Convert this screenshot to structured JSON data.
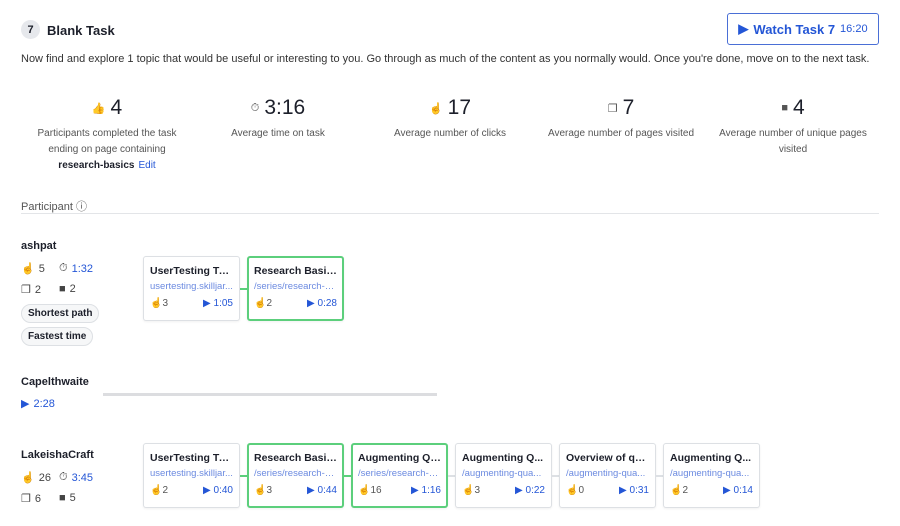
{
  "task": {
    "number": "7",
    "title": "Blank Task",
    "watch_label": "Watch Task 7",
    "watch_time": "16:20",
    "description": "Now find and explore 1 topic that would be useful or interesting to you. Go through as much of the content as you normally would. Once you're done, move on to the next task."
  },
  "stats": [
    {
      "icon": "thumbs-up-icon",
      "value": "4",
      "label": "Participants completed the task ending on page containing",
      "page": "research-basics",
      "edit": "Edit"
    },
    {
      "icon": "stopwatch-icon",
      "value": "3:16",
      "label": "Average time on task"
    },
    {
      "icon": "click-icon",
      "value": "17",
      "label": "Average number of clicks"
    },
    {
      "icon": "pages-icon",
      "value": "7",
      "label": "Average number of pages visited"
    },
    {
      "icon": "unique-pages-icon",
      "value": "4",
      "label": "Average number of unique pages visited"
    }
  ],
  "participant_header": "Participant",
  "participants": [
    {
      "name": "ashpat",
      "clicks": "5",
      "time": "1:32",
      "pages": "2",
      "unique_pages": "2",
      "badges": [
        "Shortest path",
        "Fastest time"
      ],
      "path": [
        {
          "title": "UserTesting Tra...",
          "url": "usertesting.skilljar...",
          "clicks": "3",
          "time": "1:05",
          "success": false
        },
        {
          "title": "Research Basics",
          "url": "/series/research-b...",
          "clicks": "2",
          "time": "0:28",
          "success": true
        }
      ]
    },
    {
      "name": "Capelthwaite",
      "time": "2:28"
    },
    {
      "name": "LakeishaCraft",
      "clicks": "26",
      "time": "3:45",
      "pages": "6",
      "unique_pages": "5",
      "path": [
        {
          "title": "UserTesting Tra...",
          "url": "usertesting.skilljar...",
          "clicks": "2",
          "time": "0:40",
          "success": false
        },
        {
          "title": "Research Basics",
          "url": "/series/research-b...",
          "clicks": "3",
          "time": "0:44",
          "success": true
        },
        {
          "title": "Augmenting Qu...",
          "url": "/series/research-b...",
          "clicks": "16",
          "time": "1:16",
          "success": true
        },
        {
          "title": "Augmenting Q...",
          "url": "/augmenting-qua...",
          "clicks": "3",
          "time": "0:22",
          "success": false
        },
        {
          "title": "Overview of qu...",
          "url": "/augmenting-qua...",
          "clicks": "0",
          "time": "0:31",
          "success": false
        },
        {
          "title": "Augmenting Q...",
          "url": "/augmenting-qua...",
          "clicks": "2",
          "time": "0:14",
          "success": false
        }
      ]
    }
  ],
  "colors": {
    "accent": "#2456d6",
    "success": "#5ccf7c"
  }
}
